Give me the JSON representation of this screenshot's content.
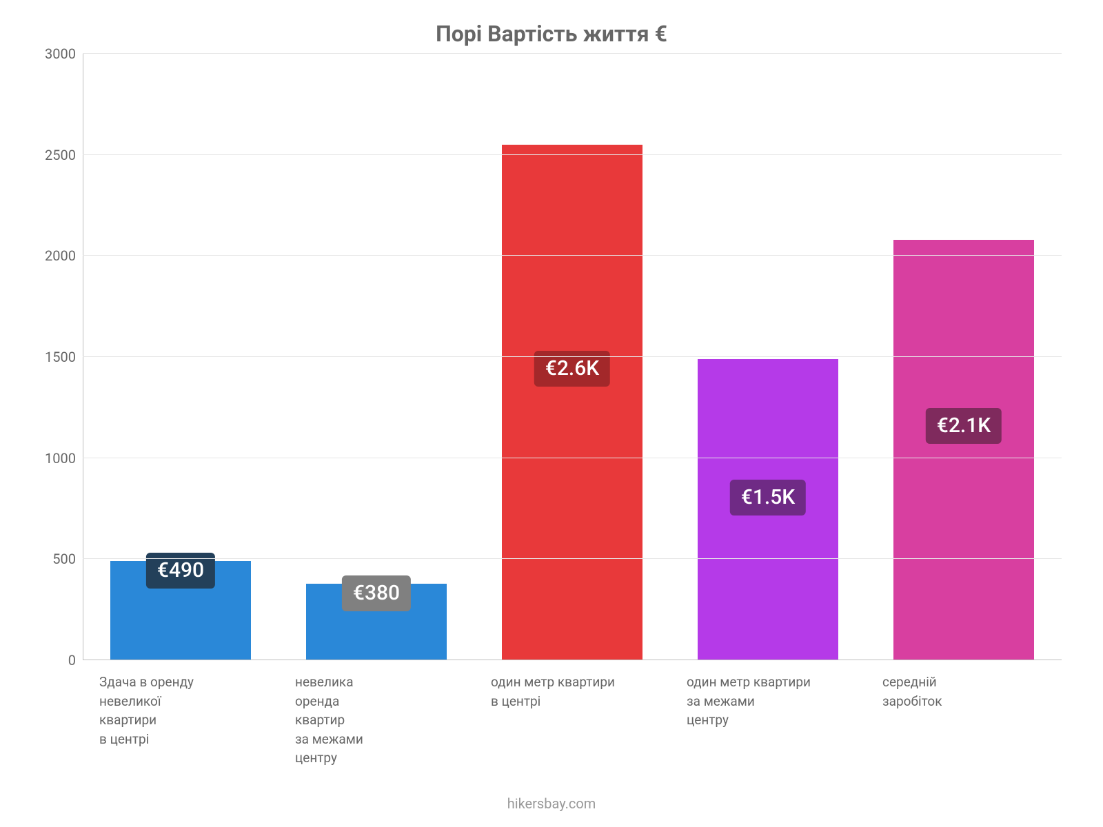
{
  "chart": {
    "type": "bar",
    "title": "Порі Вартість життя €",
    "title_color": "#666666",
    "title_fontsize": 32,
    "background_color": "#ffffff",
    "grid_color": "#e6e6e6",
    "axis_color": "#bdbdbd",
    "tick_color": "#666666",
    "tick_fontsize": 20,
    "xlabel_color": "#666666",
    "xlabel_fontsize": 19,
    "badge_fontsize": 30,
    "badge_text_color": "#ffffff",
    "ylim": [
      0,
      3000
    ],
    "ytick_step": 500,
    "yticks": [
      0,
      500,
      1000,
      1500,
      2000,
      2500,
      3000
    ],
    "bar_width": 0.72,
    "footer": "hikersbay.com",
    "footer_color": "#999999",
    "bars": [
      {
        "category": "Здача в оренду\nневеликої\nквартири\nв центрі",
        "value": 490,
        "display": "€490",
        "bar_color": "#2a88d8",
        "badge_color": "#23405a",
        "badge_mode": "top"
      },
      {
        "category": "невелика\nоренда\nквартир\nза межами\nцентру",
        "value": 380,
        "display": "€380",
        "bar_color": "#2a88d8",
        "badge_color": "#808080",
        "badge_mode": "top"
      },
      {
        "category": "один метр квартири\nв центрі",
        "value": 2550,
        "display": "€2.6K",
        "bar_color": "#e8393a",
        "badge_color": "#a3282a",
        "badge_mode": "mid"
      },
      {
        "category": "один метр квартири\nза межами\nцентру",
        "value": 1490,
        "display": "€1.5K",
        "bar_color": "#b53ae8",
        "badge_color": "#6f2a85",
        "badge_mode": "mid"
      },
      {
        "category": "середній\nзаробіток",
        "value": 2080,
        "display": "€2.1K",
        "bar_color": "#d83fa0",
        "badge_color": "#7f2a5d",
        "badge_mode": "mid"
      }
    ]
  }
}
